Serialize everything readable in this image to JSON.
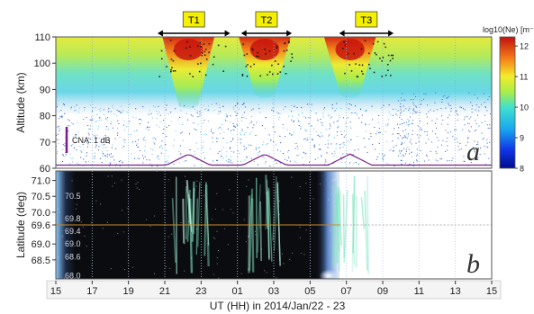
{
  "chart_data": [
    {
      "type": "heatmap",
      "panel_letter": "a",
      "ylabel": "Altitude (km)",
      "ylim": [
        60,
        110
      ],
      "yticks": [
        60,
        70,
        80,
        90,
        100,
        110
      ],
      "colorbar": {
        "label": "log10(Ne) [m⁻³]",
        "range": [
          8,
          12.3
        ],
        "ticks": [
          8,
          9,
          10,
          11,
          12
        ]
      },
      "scale_note": "CNA: 1 dB",
      "periods": [
        {
          "label": "T1",
          "start_hour": 20.6,
          "end_hour": 24.6
        },
        {
          "label": "T2",
          "start_hour": 25.2,
          "end_hour": 28.0
        },
        {
          "label": "T3",
          "start_hour": 30.6,
          "end_hour": 33.6
        }
      ],
      "enhancements": [
        {
          "center_hour": 22.3,
          "peak_log_ne": 12.2,
          "lower_altitude_km": 84
        },
        {
          "center_hour": 26.5,
          "peak_log_ne": 12.0,
          "lower_altitude_km": 88
        },
        {
          "center_hour": 31.2,
          "peak_log_ne": 11.6,
          "lower_altitude_km": 88
        }
      ]
    },
    {
      "type": "heatmap",
      "panel_letter": "b",
      "ylabel": "Latitude (deg)",
      "ylim": [
        67.9,
        71.3
      ],
      "yticks": [
        68.5,
        69.0,
        69.6,
        70.0,
        70.5,
        71.0
      ],
      "yticklabels": [
        "68.5",
        "69.0",
        "69.6",
        "70.0",
        "70.5",
        "71.0"
      ],
      "inner_labels": [
        "70.5",
        "69.8",
        "69.4",
        "69.0",
        "68.6",
        "68.0"
      ],
      "inner_label_lats": [
        70.5,
        69.8,
        69.4,
        69.0,
        68.6,
        68.0
      ],
      "reference_latitude": 69.6,
      "data_end_hour": 30.6
    }
  ],
  "x_axis": {
    "label": "UT (HH)  in 2014/Jan/22 - 23",
    "range": [
      15,
      39
    ],
    "ticks": [
      15,
      17,
      19,
      21,
      23,
      25,
      27,
      29,
      31,
      33,
      35,
      37,
      39
    ],
    "tick_labels": [
      "15",
      "17",
      "19",
      "21",
      "23",
      "01",
      "03",
      "05",
      "07",
      "09",
      "11",
      "13",
      "15"
    ]
  },
  "colors": {
    "accent_box": "#f5f000",
    "reference_line": "#c88a2a",
    "cna_line": "#7a1f8a"
  }
}
